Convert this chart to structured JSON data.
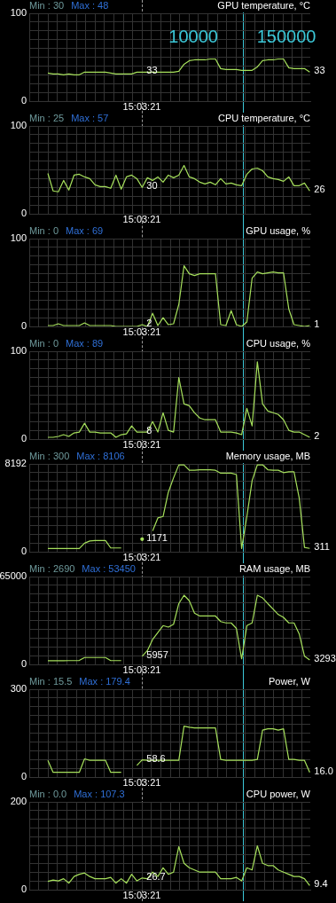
{
  "chart_data": [
    {
      "type": "line",
      "title": "GPU temperature, °C",
      "annotations": [
        "Min : 30",
        "Max : 48",
        "15:03:21",
        "10000",
        "150000"
      ],
      "grid": true,
      "categories": [
        null,
        null,
        null,
        null,
        null,
        null,
        null,
        null,
        null,
        null,
        null,
        null,
        null,
        null,
        null,
        null,
        null,
        null,
        null,
        null,
        null,
        null,
        null,
        null,
        null,
        null,
        null,
        null,
        null,
        null,
        null,
        null,
        null,
        null,
        null,
        null,
        null,
        null,
        null,
        null,
        null,
        null,
        null,
        null,
        null,
        null,
        null,
        null,
        null,
        null,
        null
      ],
      "ylim": [
        0,
        100
      ],
      "yticks": [
        0,
        {
          "value": 10,
          "label": null
        },
        {
          "value": 20,
          "label": null
        },
        {
          "value": 30,
          "label": null
        },
        {
          "value": 40,
          "label": null
        },
        {
          "value": 50,
          "label": null
        },
        {
          "value": 60,
          "label": null
        },
        {
          "value": 70,
          "label": null
        },
        {
          "value": 80,
          "label": null
        },
        {
          "value": 90,
          "label": null
        },
        100
      ],
      "series": [
        {
          "color": "#a6e05c",
          "values": [
            32,
            31,
            31,
            30,
            31,
            30,
            30,
            33,
            33,
            33,
            33,
            33,
            32,
            31,
            31,
            31,
            31,
            33,
            33,
            33,
            33,
            33,
            33,
            33,
            33,
            34,
            42,
            46,
            47,
            47,
            47,
            48,
            48,
            37,
            36,
            36,
            36,
            35,
            35,
            35,
            39,
            46,
            47,
            47,
            48,
            48,
            38,
            37,
            37,
            37,
            33
          ],
          "value_labels": [
            null,
            null,
            null,
            null,
            null,
            null,
            null,
            null,
            null,
            null,
            null,
            null,
            null,
            null,
            null,
            null,
            null,
            null,
            "33",
            null,
            null,
            null,
            null,
            null,
            null,
            null,
            null,
            null,
            null,
            null,
            null,
            null,
            null,
            null,
            null,
            null,
            null,
            null,
            null,
            null,
            null,
            null,
            null,
            null,
            null,
            null,
            null,
            null,
            null,
            null,
            "33"
          ]
        }
      ]
    },
    {
      "type": "line",
      "title": "CPU temperature, °C",
      "annotations": [
        "Min : 25",
        "Max : 57",
        "15:03:21"
      ],
      "grid": true,
      "categories": [
        null,
        null,
        null,
        null,
        null,
        null,
        null,
        null,
        null,
        null,
        null,
        null,
        null,
        null,
        null,
        null,
        null,
        null,
        null,
        null,
        null,
        null,
        null,
        null,
        null,
        null,
        null,
        null,
        null,
        null,
        null,
        null,
        null,
        null,
        null,
        null,
        null,
        null,
        null,
        null,
        null,
        null,
        null,
        null,
        null,
        null,
        null,
        null,
        null,
        null,
        null
      ],
      "ylim": [
        0,
        100
      ],
      "yticks": [
        0,
        {
          "value": 10,
          "label": null
        },
        {
          "value": 20,
          "label": null
        },
        {
          "value": 30,
          "label": null
        },
        {
          "value": 40,
          "label": null
        },
        {
          "value": 50,
          "label": null
        },
        {
          "value": 60,
          "label": null
        },
        {
          "value": 70,
          "label": null
        },
        {
          "value": 80,
          "label": null
        },
        {
          "value": 90,
          "label": null
        },
        100
      ],
      "series": [
        {
          "color": "#a6e05c",
          "values": [
            46,
            26,
            25,
            38,
            27,
            44,
            45,
            42,
            40,
            33,
            31,
            31,
            29,
            44,
            28,
            42,
            44,
            40,
            30,
            41,
            38,
            42,
            36,
            44,
            41,
            44,
            55,
            42,
            40,
            36,
            34,
            36,
            33,
            40,
            34,
            35,
            33,
            32,
            45,
            51,
            52,
            49,
            42,
            40,
            39,
            37,
            42,
            32,
            32,
            35,
            26
          ],
          "value_labels": [
            null,
            null,
            null,
            null,
            null,
            null,
            null,
            null,
            null,
            null,
            null,
            null,
            null,
            null,
            null,
            null,
            null,
            null,
            "30",
            null,
            null,
            null,
            null,
            null,
            null,
            null,
            null,
            null,
            null,
            null,
            null,
            null,
            null,
            null,
            null,
            null,
            null,
            null,
            null,
            null,
            null,
            null,
            null,
            null,
            null,
            null,
            null,
            null,
            null,
            null,
            "26"
          ]
        }
      ]
    },
    {
      "type": "line",
      "title": "GPU usage, %",
      "annotations": [
        "Min : 0",
        "Max : 69",
        "15:03:21"
      ],
      "grid": true,
      "categories": [
        null,
        null,
        null,
        null,
        null,
        null,
        null,
        null,
        null,
        null,
        null,
        null,
        null,
        null,
        null,
        null,
        null,
        null,
        null,
        null,
        null,
        null,
        null,
        null,
        null,
        null,
        null,
        null,
        null,
        null,
        null,
        null,
        null,
        null,
        null,
        null,
        null,
        null,
        null,
        null,
        null,
        null,
        null,
        null,
        null,
        null,
        null,
        null,
        null,
        null,
        null
      ],
      "ylim": [
        0,
        100
      ],
      "yticks": [
        0,
        {
          "value": 10,
          "label": null
        },
        {
          "value": 20,
          "label": null
        },
        {
          "value": 30,
          "label": null
        },
        {
          "value": 40,
          "label": null
        },
        {
          "value": 50,
          "label": null
        },
        {
          "value": 60,
          "label": null
        },
        {
          "value": 70,
          "label": null
        },
        {
          "value": 80,
          "label": null
        },
        {
          "value": 90,
          "label": null
        },
        100
      ],
      "series": [
        {
          "color": "#a6e05c",
          "values": [
            1,
            1,
            3,
            1,
            1,
            1,
            1,
            4,
            1,
            1,
            1,
            1,
            1,
            0,
            0,
            0,
            0,
            0,
            2,
            0,
            15,
            1,
            10,
            2,
            3,
            25,
            69,
            60,
            58,
            60,
            60,
            60,
            60,
            2,
            1,
            18,
            2,
            0,
            5,
            55,
            62,
            60,
            61,
            62,
            61,
            61,
            20,
            2,
            1,
            0,
            1
          ],
          "value_labels": [
            null,
            null,
            null,
            null,
            null,
            null,
            null,
            null,
            null,
            null,
            null,
            null,
            null,
            null,
            null,
            null,
            null,
            null,
            "2",
            null,
            null,
            null,
            null,
            null,
            null,
            null,
            null,
            null,
            null,
            null,
            null,
            null,
            null,
            null,
            null,
            null,
            null,
            null,
            null,
            null,
            null,
            null,
            null,
            null,
            null,
            null,
            null,
            null,
            null,
            null,
            "1"
          ]
        }
      ]
    },
    {
      "type": "line",
      "title": "CPU usage, %",
      "annotations": [
        "Min : 0",
        "Max : 89",
        "15:03:21"
      ],
      "grid": true,
      "categories": [
        null,
        null,
        null,
        null,
        null,
        null,
        null,
        null,
        null,
        null,
        null,
        null,
        null,
        null,
        null,
        null,
        null,
        null,
        null,
        null,
        null,
        null,
        null,
        null,
        null,
        null,
        null,
        null,
        null,
        null,
        null,
        null,
        null,
        null,
        null,
        null,
        null,
        null,
        null,
        null,
        null,
        null,
        null,
        null,
        null,
        null,
        null,
        null,
        null,
        null,
        null
      ],
      "ylim": [
        0,
        100
      ],
      "yticks": [
        0,
        {
          "value": 10,
          "label": null
        },
        {
          "value": 20,
          "label": null
        },
        {
          "value": 30,
          "label": null
        },
        {
          "value": 40,
          "label": null
        },
        {
          "value": 50,
          "label": null
        },
        {
          "value": 60,
          "label": null
        },
        {
          "value": 70,
          "label": null
        },
        {
          "value": 80,
          "label": null
        },
        {
          "value": 90,
          "label": null
        },
        100
      ],
      "series": [
        {
          "color": "#a6e05c",
          "values": [
            2,
            2,
            3,
            5,
            3,
            7,
            8,
            18,
            8,
            8,
            7,
            7,
            7,
            2,
            5,
            6,
            15,
            8,
            8,
            8,
            20,
            8,
            30,
            10,
            8,
            70,
            40,
            38,
            30,
            24,
            22,
            22,
            22,
            8,
            8,
            8,
            7,
            5,
            35,
            15,
            88,
            40,
            32,
            30,
            28,
            22,
            10,
            8,
            8,
            5,
            2
          ],
          "value_labels": [
            null,
            null,
            null,
            null,
            null,
            null,
            null,
            null,
            null,
            null,
            null,
            null,
            null,
            null,
            null,
            null,
            null,
            null,
            "8",
            null,
            null,
            null,
            null,
            null,
            null,
            null,
            null,
            null,
            null,
            null,
            null,
            null,
            null,
            null,
            null,
            null,
            null,
            null,
            null,
            null,
            null,
            null,
            null,
            null,
            null,
            null,
            null,
            null,
            null,
            null,
            "2"
          ]
        }
      ]
    },
    {
      "type": "line",
      "title": "Memory usage, MB",
      "annotations": [
        "Min : 300",
        "Max : 8106",
        "15:03:21"
      ],
      "grid": true,
      "categories": [
        null,
        null,
        null,
        null,
        null,
        null,
        null,
        null,
        null,
        null,
        null,
        null,
        null,
        null,
        null,
        null,
        null,
        null,
        null,
        null,
        null,
        null,
        null,
        null,
        null,
        null,
        null,
        null,
        null,
        null,
        null,
        null,
        null,
        null,
        null,
        null,
        null,
        null,
        null,
        null,
        null,
        null,
        null,
        null,
        null,
        null,
        null,
        null,
        null,
        null,
        null
      ],
      "ylim": [
        0,
        8192
      ],
      "yticks": [
        0,
        {
          "value": 819.2,
          "label": null
        },
        {
          "value": 1638.4,
          "label": null
        },
        {
          "value": 2457.6,
          "label": null
        },
        {
          "value": 3276.8,
          "label": null
        },
        {
          "value": 4096,
          "label": null
        },
        {
          "value": 4915.2,
          "label": null
        },
        {
          "value": 5734.4,
          "label": null
        },
        {
          "value": 6553.6,
          "label": null
        },
        {
          "value": 7372.8,
          "label": null
        },
        8192
      ],
      "series": [
        {
          "color": "#a6e05c",
          "values": [
            300,
            300,
            300,
            300,
            300,
            300,
            300,
            800,
            1000,
            1050,
            1050,
            1050,
            350,
            350,
            350,
            null,
            null,
            null,
            1171,
            null,
            1940,
            3150,
            3290,
            5550,
            6900,
            8100,
            8100,
            7600,
            7600,
            7650,
            7650,
            7650,
            7600,
            7330,
            7330,
            7330,
            7200,
            300,
            3290,
            6630,
            8106,
            8106,
            7650,
            7600,
            7600,
            7380,
            7450,
            7450,
            5000,
            400,
            311
          ],
          "value_labels": [
            null,
            null,
            null,
            null,
            null,
            null,
            null,
            null,
            null,
            null,
            null,
            null,
            null,
            null,
            null,
            null,
            null,
            null,
            "1171",
            null,
            null,
            null,
            null,
            null,
            null,
            null,
            null,
            null,
            null,
            null,
            null,
            null,
            null,
            null,
            null,
            null,
            null,
            null,
            null,
            null,
            null,
            null,
            null,
            null,
            null,
            null,
            null,
            null,
            null,
            null,
            "311"
          ]
        }
      ]
    },
    {
      "type": "line",
      "title": "RAM usage, MB",
      "annotations": [
        "Min : 2690",
        "Max : 53450",
        "15:03:21"
      ],
      "grid": true,
      "categories": [
        null,
        null,
        null,
        null,
        null,
        null,
        null,
        null,
        null,
        null,
        null,
        null,
        null,
        null,
        null,
        null,
        null,
        null,
        null,
        null,
        null,
        null,
        null,
        null,
        null,
        null,
        null,
        null,
        null,
        null,
        null,
        null,
        null,
        null,
        null,
        null,
        null,
        null,
        null,
        null,
        null,
        null,
        null,
        null,
        null,
        null,
        null,
        null,
        null,
        null,
        null
      ],
      "ylim": [
        0,
        65000
      ],
      "yticks": [
        0,
        {
          "value": 6500,
          "label": null
        },
        {
          "value": 13000,
          "label": null
        },
        {
          "value": 19500,
          "label": null
        },
        {
          "value": 26000,
          "label": null
        },
        {
          "value": 32500,
          "label": null
        },
        {
          "value": 39000,
          "label": null
        },
        {
          "value": 45500,
          "label": null
        },
        {
          "value": 52000,
          "label": null
        },
        {
          "value": 58500,
          "label": null
        },
        65000
      ],
      "series": [
        {
          "color": "#a6e05c",
          "values": [
            2690,
            2700,
            2700,
            2750,
            2800,
            2800,
            2900,
            5100,
            5100,
            5100,
            5100,
            5100,
            2800,
            2800,
            2800,
            null,
            null,
            null,
            5957,
            10240,
            18400,
            23500,
            28700,
            27600,
            29700,
            45000,
            51200,
            47100,
            37900,
            35800,
            35800,
            35800,
            35800,
            31700,
            30700,
            30700,
            26600,
            4100,
            28700,
            30700,
            51200,
            49200,
            45000,
            41000,
            36900,
            34800,
            30700,
            30700,
            22500,
            6100,
            3293
          ],
          "value_labels": [
            null,
            null,
            null,
            null,
            null,
            null,
            null,
            null,
            null,
            null,
            null,
            null,
            null,
            null,
            null,
            null,
            null,
            null,
            "5957",
            null,
            null,
            null,
            null,
            null,
            null,
            null,
            null,
            null,
            null,
            null,
            null,
            null,
            null,
            null,
            null,
            null,
            null,
            null,
            null,
            null,
            null,
            null,
            null,
            null,
            null,
            null,
            null,
            null,
            null,
            null,
            "3293"
          ]
        }
      ]
    },
    {
      "type": "line",
      "title": "Power, W",
      "annotations": [
        "Min : 15.5",
        "Max : 179.4",
        "15:03:21"
      ],
      "grid": true,
      "categories": [
        null,
        null,
        null,
        null,
        null,
        null,
        null,
        null,
        null,
        null,
        null,
        null,
        null,
        null,
        null,
        null,
        null,
        null,
        null,
        null,
        null,
        null,
        null,
        null,
        null,
        null,
        null,
        null,
        null,
        null,
        null,
        null,
        null,
        null,
        null,
        null,
        null,
        null,
        null,
        null,
        null,
        null,
        null,
        null,
        null,
        null,
        null,
        null,
        null,
        null,
        null
      ],
      "ylim": [
        0,
        300
      ],
      "yticks": [
        0,
        {
          "value": 30,
          "label": null
        },
        {
          "value": 60,
          "label": null
        },
        {
          "value": 90,
          "label": null
        },
        {
          "value": 120,
          "label": null
        },
        {
          "value": 150,
          "label": null
        },
        {
          "value": 180,
          "label": null
        },
        {
          "value": 210,
          "label": null
        },
        {
          "value": 240,
          "label": null
        },
        {
          "value": 270,
          "label": null
        },
        300
      ],
      "series": [
        {
          "color": "#a6e05c",
          "values": [
            57,
            16,
            16,
            16,
            16,
            16,
            16,
            62,
            57,
            57,
            57,
            57,
            16,
            16,
            16,
            null,
            null,
            40,
            58.6,
            57,
            57,
            57,
            57,
            57,
            57,
            57,
            174,
            170,
            168,
            168,
            168,
            168,
            168,
            60,
            57,
            57,
            57,
            57,
            57,
            57,
            60,
            160,
            165,
            165,
            160,
            165,
            60,
            60,
            57,
            57,
            16
          ],
          "value_labels": [
            null,
            null,
            null,
            null,
            null,
            null,
            null,
            null,
            null,
            null,
            null,
            null,
            null,
            null,
            null,
            null,
            null,
            null,
            "58.6",
            null,
            null,
            null,
            null,
            null,
            null,
            null,
            null,
            null,
            null,
            null,
            null,
            null,
            null,
            null,
            null,
            null,
            null,
            null,
            null,
            null,
            null,
            null,
            null,
            null,
            null,
            null,
            null,
            null,
            null,
            null,
            "16.0"
          ]
        }
      ]
    },
    {
      "type": "line",
      "title": "CPU power, W",
      "annotations": [
        "Min : 0.0",
        "Max : 107.3",
        "15:03:21"
      ],
      "grid": true,
      "categories": [
        null,
        null,
        null,
        null,
        null,
        null,
        null,
        null,
        null,
        null,
        null,
        null,
        null,
        null,
        null,
        null,
        null,
        null,
        null,
        null,
        null,
        null,
        null,
        null,
        null,
        null,
        null,
        null,
        null,
        null,
        null,
        null,
        null,
        null,
        null,
        null,
        null,
        null,
        null,
        null,
        null,
        null,
        null,
        null,
        null,
        null,
        null,
        null,
        null,
        null,
        null
      ],
      "ylim": [
        0,
        200
      ],
      "yticks": [
        0,
        {
          "value": 20,
          "label": null
        },
        {
          "value": 40,
          "label": null
        },
        {
          "value": 60,
          "label": null
        },
        {
          "value": 80,
          "label": null
        },
        {
          "value": 100,
          "label": null
        },
        {
          "value": 120,
          "label": null
        },
        {
          "value": 140,
          "label": null
        },
        {
          "value": 160,
          "label": null
        },
        {
          "value": 180,
          "label": null
        },
        200
      ],
      "series": [
        {
          "color": "#a6e05c",
          "values": [
            19,
            22,
            20,
            25,
            15,
            30,
            35,
            38,
            30,
            25,
            25,
            25,
            28,
            15,
            25,
            15,
            35,
            20,
            26.7,
            25,
            40,
            30,
            50,
            35,
            40,
            98,
            60,
            50,
            45,
            40,
            40,
            40,
            40,
            25,
            25,
            25,
            28,
            20,
            50,
            45,
            100,
            60,
            55,
            55,
            45,
            40,
            35,
            30,
            30,
            25,
            9.4
          ],
          "value_labels": [
            null,
            null,
            null,
            null,
            null,
            null,
            null,
            null,
            null,
            null,
            null,
            null,
            null,
            null,
            null,
            null,
            null,
            null,
            "26.7",
            null,
            null,
            null,
            null,
            null,
            null,
            null,
            null,
            null,
            null,
            null,
            null,
            null,
            null,
            null,
            null,
            null,
            null,
            null,
            null,
            null,
            null,
            null,
            null,
            null,
            null,
            null,
            null,
            null,
            null,
            null,
            "9.4"
          ]
        }
      ]
    }
  ]
}
